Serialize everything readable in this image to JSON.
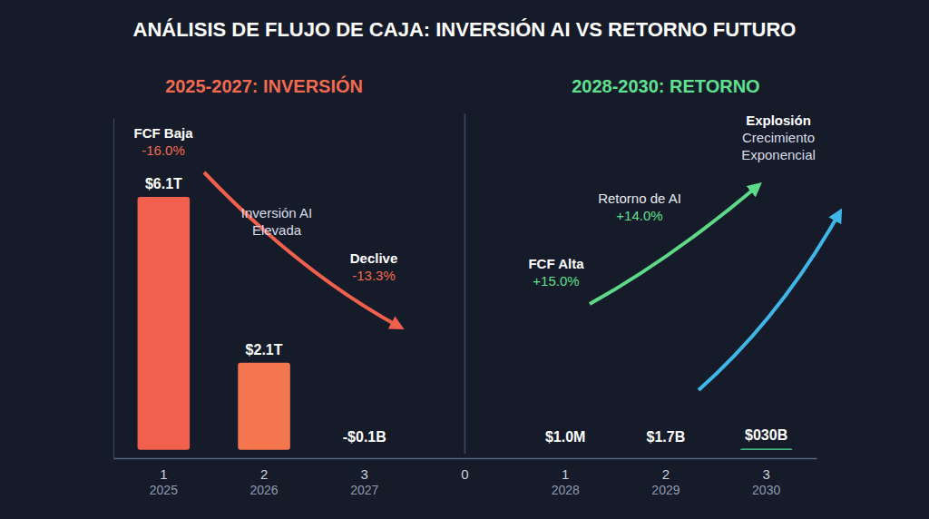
{
  "chart_data": {
    "type": "bar",
    "title": "ANÁLISIS DE FLUJO DE CAJA: INVERSIÓN AI VS RETORNO FUTURO",
    "panel_titles": [
      "2025-2027: INVERSIÓN",
      "2028-2030: RETORNO"
    ],
    "categories": [
      "1",
      "2",
      "3",
      "0",
      "1",
      "2",
      "3"
    ],
    "category_years": [
      "2025",
      "2026",
      "2027",
      null,
      "2028",
      "2029",
      "2030"
    ],
    "values": [
      6100,
      2100,
      -0.1,
      null,
      0.001,
      1.7,
      30
    ],
    "value_labels": [
      "$6.1T",
      "$2.1T",
      "-$0.1B",
      null,
      "$1.0M",
      "$1.7B",
      "$030B"
    ],
    "colors": [
      "#f0604d",
      "#f3764f",
      "#f58953",
      null,
      "#5ed98a",
      "#55dc98",
      "#4de6a4"
    ],
    "ylim": [
      -200,
      8000
    ],
    "data_labels": true,
    "tick_labels": "x",
    "annotations": [
      {
        "lines": [
          "FCF Baja",
          "-16.0%"
        ]
      },
      {
        "lines": [
          "Inversión AI",
          "Elevada"
        ]
      },
      {
        "lines": [
          "Declive",
          "-13.3%"
        ]
      },
      {
        "lines": [
          "FCF Alta",
          "+15.0%"
        ]
      },
      {
        "lines": [
          "Retorno de AI",
          "+14.0%"
        ]
      },
      {
        "lines": [
          "Explosión",
          "Crecimiento",
          "Exponencial"
        ]
      }
    ]
  }
}
